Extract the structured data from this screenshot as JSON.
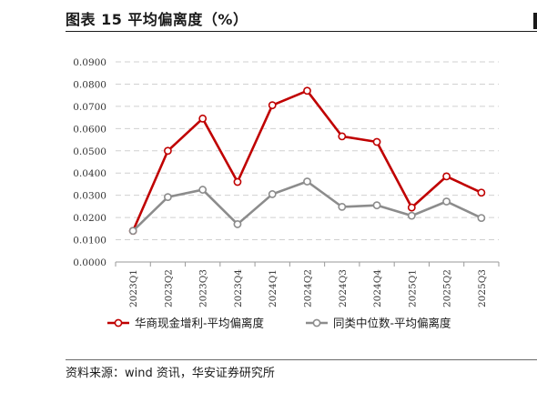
{
  "figure": {
    "title": "图表 15 平均偏离度（%）",
    "source": "资料来源：wind 资讯，华安证券研究所"
  },
  "chart_data": {
    "type": "line",
    "categories": [
      "2023Q1",
      "2023Q2",
      "2023Q3",
      "2023Q4",
      "2024Q1",
      "2024Q2",
      "2024Q3",
      "2024Q4",
      "2025Q1",
      "2025Q2",
      "2025Q3"
    ],
    "yticks": [
      "0.0000",
      "0.0100",
      "0.0200",
      "0.0300",
      "0.0400",
      "0.0500",
      "0.0600",
      "0.0700",
      "0.0800",
      "0.0900"
    ],
    "ylim": [
      0,
      0.09
    ],
    "grid": true,
    "legend_position": "bottom",
    "series": [
      {
        "name": "华商现金增利-平均偏离度",
        "color": "#c00000",
        "values": [
          0.014,
          0.05,
          0.0645,
          0.036,
          0.0705,
          0.077,
          0.0565,
          0.054,
          0.0245,
          0.0385,
          0.0312
        ]
      },
      {
        "name": "同类中位数-平均偏离度",
        "color": "#8c8c8c",
        "values": [
          0.014,
          0.0292,
          0.0325,
          0.017,
          0.0305,
          0.0362,
          0.0248,
          0.0255,
          0.0208,
          0.0272,
          0.0198
        ]
      }
    ]
  }
}
